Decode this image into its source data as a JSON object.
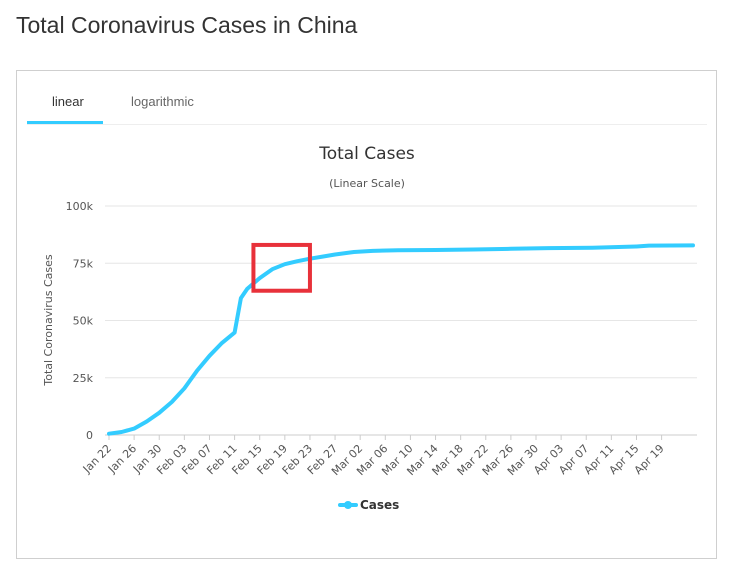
{
  "page": {
    "title": "Total Coronavirus Cases in China"
  },
  "tabs": [
    {
      "label": "linear",
      "active": true
    },
    {
      "label": "logarithmic",
      "active": false
    }
  ],
  "colors": {
    "series": "#33ccff",
    "highlight": "#e8313a",
    "tab_active": "#33ccff"
  },
  "chart_data": {
    "type": "line",
    "title": "Total Cases",
    "subtitle": "(Linear Scale)",
    "ylabel": "Total Coronavirus Cases",
    "xlabel": "",
    "ylim": [
      0,
      100000
    ],
    "y_ticks": [
      "0",
      "25k",
      "50k",
      "75k",
      "100k"
    ],
    "y_tick_values": [
      0,
      25000,
      50000,
      75000,
      100000
    ],
    "x_tick_labels": [
      "Jan 22",
      "Jan 26",
      "Jan 30",
      "Feb 03",
      "Feb 07",
      "Feb 11",
      "Feb 15",
      "Feb 19",
      "Feb 23",
      "Feb 27",
      "Mar 02",
      "Mar 06",
      "Mar 10",
      "Mar 14",
      "Mar 18",
      "Mar 22",
      "Mar 26",
      "Mar 30",
      "Apr 03",
      "Apr 07",
      "Apr 11",
      "Apr 15",
      "Apr 19"
    ],
    "x": [
      "Jan 22",
      "Jan 24",
      "Jan 26",
      "Jan 28",
      "Jan 30",
      "Feb 01",
      "Feb 03",
      "Feb 05",
      "Feb 07",
      "Feb 09",
      "Feb 11",
      "Feb 12",
      "Feb 13",
      "Feb 15",
      "Feb 17",
      "Feb 19",
      "Feb 21",
      "Feb 23",
      "Feb 25",
      "Feb 27",
      "Mar 01",
      "Mar 04",
      "Mar 08",
      "Mar 14",
      "Mar 20",
      "Mar 26",
      "Apr 01",
      "Apr 08",
      "Apr 15",
      "Apr 17",
      "Apr 24"
    ],
    "series": [
      {
        "name": "Cases",
        "values": [
          571,
          1300,
          2800,
          5900,
          9700,
          14400,
          20400,
          28000,
          34600,
          40200,
          44700,
          59800,
          63800,
          68500,
          72400,
          74600,
          75900,
          77000,
          77900,
          78800,
          79900,
          80400,
          80700,
          80800,
          81000,
          81300,
          81600,
          81800,
          82300,
          82700,
          82800
        ]
      }
    ],
    "legend": {
      "position": "bottom-center",
      "label": "Cases"
    },
    "grid": true,
    "annotation": {
      "type": "highlight-box",
      "x_range": [
        "Feb 14",
        "Feb 23"
      ],
      "y_range": [
        63000,
        83000
      ]
    }
  }
}
